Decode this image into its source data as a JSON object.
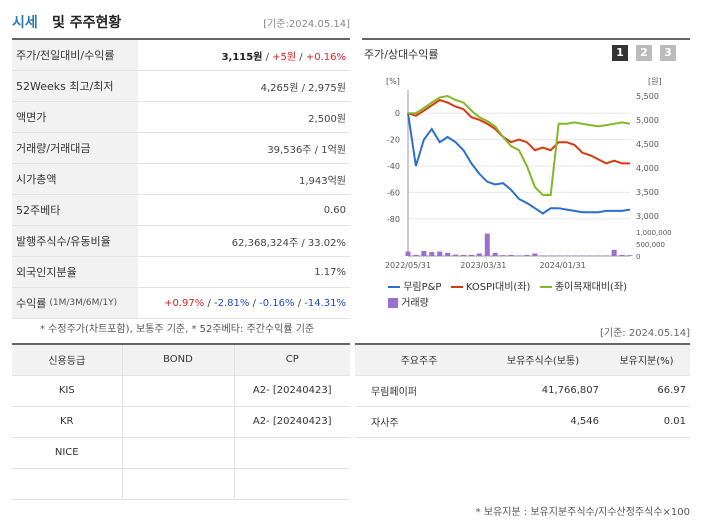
{
  "header": {
    "title_left": "시세",
    "title_right": "및 주주현황",
    "date": "[기준:2024.05.14]"
  },
  "rows": [
    {
      "label": "주가/전일대비/수익률",
      "price": "3,115원",
      "sep1": " / ",
      "change": "+5원",
      "sep2": " / ",
      "rate": "+0.16%"
    },
    {
      "label": "52Weeks 최고/최저",
      "value": "4,265원 / 2,975원"
    },
    {
      "label": "액면가",
      "value": "2,500원"
    },
    {
      "label": "거래량/거래대금",
      "value": "39,536주 / 1억원"
    },
    {
      "label": "시가총액",
      "value": "1,943억원"
    },
    {
      "label": "52주베타",
      "value": "0.60"
    },
    {
      "label": "발행주식수/유동비율",
      "value": "62,368,324주 / 33.02%"
    },
    {
      "label": "외국인지분율",
      "value": "1.17%"
    },
    {
      "label": "수익률",
      "sub": "(1M/3M/6M/1Y)",
      "r1": "+0.97%",
      "r2": "-2.81%",
      "r3": "-0.16%",
      "r4": "-14.31%"
    }
  ],
  "note1": "* 수정주가(차트포함), 보통주 기준, * 52주베타: 주간수익률 기준",
  "chart_panel": {
    "title": "주가/상대수익률",
    "pages": [
      "1",
      "2",
      "3"
    ],
    "left_unit": "[%]",
    "right_unit": "[원]",
    "legend": {
      "s1": "무림P&P",
      "s2": "KOSPI대비(좌)",
      "s3": "종이목재대비(좌)",
      "vol": "거래량"
    }
  },
  "chart_data": {
    "type": "line",
    "x": [
      0,
      1,
      2,
      3,
      4,
      5,
      6,
      7,
      8,
      9,
      10,
      11,
      12,
      13,
      14,
      15,
      16,
      17,
      18,
      19,
      20,
      21,
      22,
      23,
      24,
      25,
      26,
      27,
      28
    ],
    "xticks": [
      {
        "pos": 0,
        "label": "2022/05/31"
      },
      {
        "pos": 9.5,
        "label": "2023/03/31"
      },
      {
        "pos": 19.5,
        "label": "2024/01/31"
      }
    ],
    "y_left_ticks": [
      "0",
      "-20",
      "-40",
      "-60",
      "-80"
    ],
    "y_right_ticks": [
      "5,500",
      "5,000",
      "4,500",
      "4,000",
      "3,500",
      "3,000"
    ],
    "vol_ticks": [
      "1,000,000",
      "500,000",
      "0"
    ],
    "ylim_left": [
      -90,
      10
    ],
    "vol_max": 1000000,
    "series": [
      {
        "name": "무림P&P",
        "color": "#2d6ed1",
        "values": [
          0,
          -40,
          -20,
          -12,
          -22,
          -18,
          -22,
          -28,
          -38,
          -46,
          -52,
          -54,
          -53,
          -58,
          -65,
          -68,
          -72,
          -76,
          -72,
          -72,
          -73,
          -74,
          -75,
          -75,
          -75,
          -74,
          -74,
          -74,
          -73
        ]
      },
      {
        "name": "KOSPI대비(좌)",
        "color": "#d9380f",
        "values": [
          0,
          -2,
          2,
          6,
          10,
          8,
          5,
          3,
          -3,
          -5,
          -8,
          -12,
          -18,
          -22,
          -20,
          -22,
          -28,
          -26,
          -28,
          -22,
          -22,
          -24,
          -30,
          -32,
          -35,
          -38,
          -36,
          -38,
          -38
        ]
      },
      {
        "name": "종이목재대비(좌)",
        "color": "#82b826",
        "values": [
          0,
          0,
          4,
          8,
          12,
          13,
          10,
          8,
          2,
          -3,
          -6,
          -10,
          -18,
          -25,
          -28,
          -40,
          -56,
          -62,
          -62,
          -8,
          -8,
          -7,
          -8,
          -9,
          -10,
          -9,
          -8,
          -7,
          -8
        ]
      }
    ],
    "volume": [
      160000,
      40000,
      180000,
      140000,
      160000,
      110000,
      50000,
      40000,
      40000,
      90000,
      800000,
      110000,
      30000,
      40000,
      20000,
      40000,
      90000,
      20000,
      20000,
      20000,
      20000,
      20000,
      20000,
      20000,
      20000,
      20000,
      220000,
      40000,
      30000
    ]
  },
  "note2": "[기준: 2024.05.14]",
  "credit": {
    "headers": [
      "신용등급",
      "BOND",
      "CP"
    ],
    "rows": [
      [
        "KIS",
        "",
        "A2-  [20240423]"
      ],
      [
        "KR",
        "",
        "A2-  [20240423]"
      ],
      [
        "NICE",
        "",
        ""
      ],
      [
        "",
        "",
        ""
      ]
    ]
  },
  "holders": {
    "headers": [
      "주요주주",
      "보유주식수(보통)",
      "보유지분(%)"
    ],
    "rows": [
      [
        "무림페이퍼",
        "41,766,807",
        "66.97"
      ],
      [
        "자사주",
        "4,546",
        "0.01"
      ]
    ]
  },
  "note3": "* 보유지분 : 보유지분주식수/지수산정주식수×100"
}
